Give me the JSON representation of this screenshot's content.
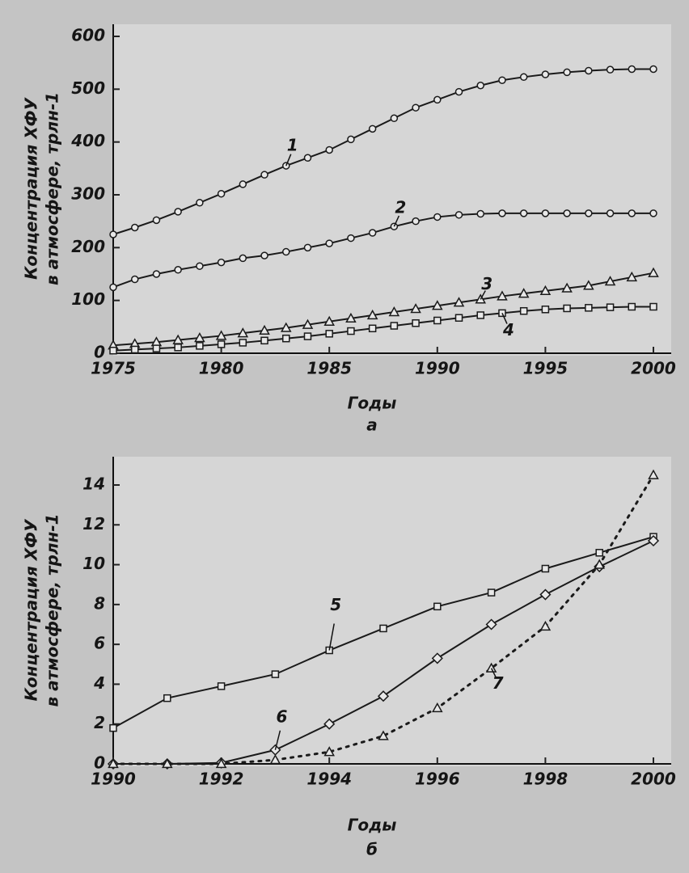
{
  "chart_data": [
    {
      "type": "line",
      "caption": "а",
      "x_label": "Годы",
      "y_label": [
        "Концентрация ХФУ",
        "в атмосфере, трлн-1"
      ],
      "x": [
        1975,
        1976,
        1977,
        1978,
        1979,
        1980,
        1981,
        1982,
        1983,
        1984,
        1985,
        1986,
        1987,
        1988,
        1989,
        1990,
        1991,
        1992,
        1993,
        1994,
        1995,
        1996,
        1997,
        1998,
        1999,
        2000
      ],
      "xlim": [
        1975,
        2000
      ],
      "xticks": [
        1975,
        1980,
        1985,
        1990,
        1995,
        2000
      ],
      "ylim": [
        0,
        600
      ],
      "yticks": [
        0,
        100,
        200,
        300,
        400,
        500,
        600
      ],
      "series": [
        {
          "name": "1",
          "color": "#1a1a1a",
          "marker": "circle",
          "line": "solid",
          "values": [
            225,
            238,
            252,
            268,
            285,
            302,
            320,
            338,
            355,
            370,
            385,
            405,
            425,
            445,
            465,
            480,
            495,
            507,
            517,
            523,
            528,
            532,
            535,
            537,
            538,
            538
          ]
        },
        {
          "name": "2",
          "color": "#1a1a1a",
          "marker": "circle",
          "line": "solid",
          "values": [
            125,
            140,
            150,
            158,
            165,
            172,
            180,
            185,
            192,
            200,
            208,
            218,
            228,
            240,
            250,
            258,
            262,
            264,
            265,
            265,
            265,
            265,
            265,
            265,
            265,
            265
          ]
        },
        {
          "name": "3",
          "color": "#1a1a1a",
          "marker": "triangle",
          "line": "solid",
          "values": [
            15,
            18,
            21,
            25,
            29,
            33,
            38,
            43,
            48,
            54,
            60,
            66,
            72,
            78,
            84,
            90,
            96,
            102,
            108,
            113,
            118,
            123,
            128,
            136,
            144,
            152
          ]
        },
        {
          "name": "4",
          "color": "#1a1a1a",
          "marker": "square",
          "line": "solid",
          "values": [
            5,
            7,
            9,
            11,
            14,
            17,
            20,
            24,
            28,
            32,
            37,
            42,
            47,
            52,
            57,
            62,
            67,
            72,
            76,
            80,
            83,
            85,
            86,
            87,
            88,
            88
          ]
        }
      ]
    },
    {
      "type": "line",
      "caption": "б",
      "x_label": "Годы",
      "y_label": [
        "Концентрация ХФУ",
        "в атмосфере, трлн-1"
      ],
      "x": [
        1990,
        1991,
        1992,
        1993,
        1994,
        1995,
        1996,
        1997,
        1998,
        1999,
        2000
      ],
      "xlim": [
        1990,
        2000
      ],
      "xticks": [
        1990,
        1992,
        1994,
        1996,
        1998,
        2000
      ],
      "ylim": [
        0,
        15
      ],
      "yticks": [
        0,
        2,
        4,
        6,
        8,
        10,
        12,
        14
      ],
      "series": [
        {
          "name": "5",
          "color": "#1a1a1a",
          "marker": "square",
          "line": "solid",
          "values": [
            1.8,
            3.3,
            3.9,
            4.5,
            5.7,
            6.8,
            7.9,
            8.6,
            9.8,
            10.6,
            11.4
          ]
        },
        {
          "name": "6",
          "color": "#1a1a1a",
          "marker": "diamond",
          "line": "solid",
          "values": [
            0,
            0,
            0.05,
            0.7,
            2.0,
            3.4,
            5.3,
            7.0,
            8.5,
            9.9,
            11.2
          ]
        },
        {
          "name": "7",
          "color": "#1a1a1a",
          "marker": "triangle",
          "line": "dotted",
          "values": [
            0,
            0,
            0,
            0.2,
            0.6,
            1.4,
            2.8,
            4.8,
            6.9,
            10.0,
            14.5
          ]
        }
      ]
    }
  ]
}
